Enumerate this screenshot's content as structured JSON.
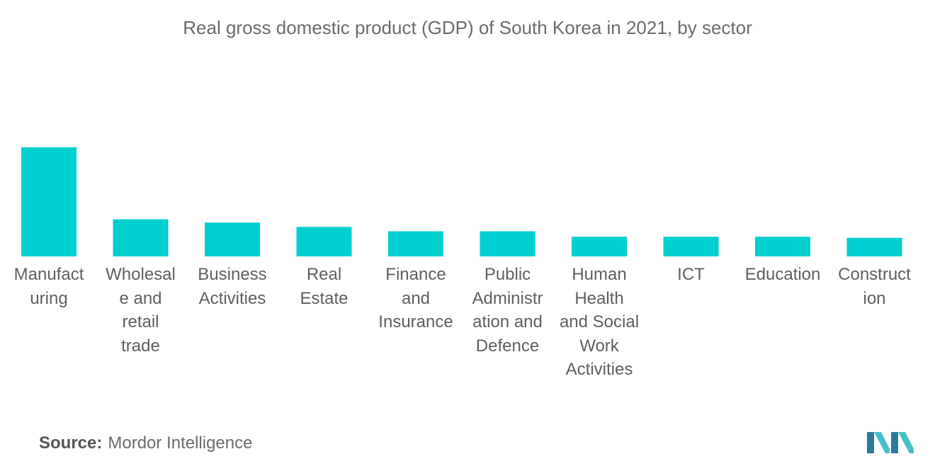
{
  "chart_data": {
    "type": "bar",
    "title": "Real gross domestic product (GDP) of South Korea in 2021, by sector",
    "categories": [
      "Manufact\nuring",
      "Wholesal\ne and\nretail\ntrade",
      "Business\nActivities",
      "Real\nEstate",
      "Finance\nand\nInsurance",
      "Public\nAdministr\nation and\nDefence",
      "Human\nHealth\nand Social\nWork\nActivities",
      "ICT",
      "Education",
      "Construct\nion"
    ],
    "values": [
      100,
      34,
      31,
      27,
      23,
      23,
      18,
      18,
      18,
      17
    ],
    "xlabel": "",
    "ylabel": "",
    "ylim": [
      0,
      100
    ],
    "grid": false,
    "bar_color": "#00cfcf"
  },
  "source": {
    "label": "Source:",
    "text": "Mordor Intelligence"
  },
  "colors": {
    "logo_dark": "#2b7a9c",
    "logo_light": "#45c0c8"
  }
}
